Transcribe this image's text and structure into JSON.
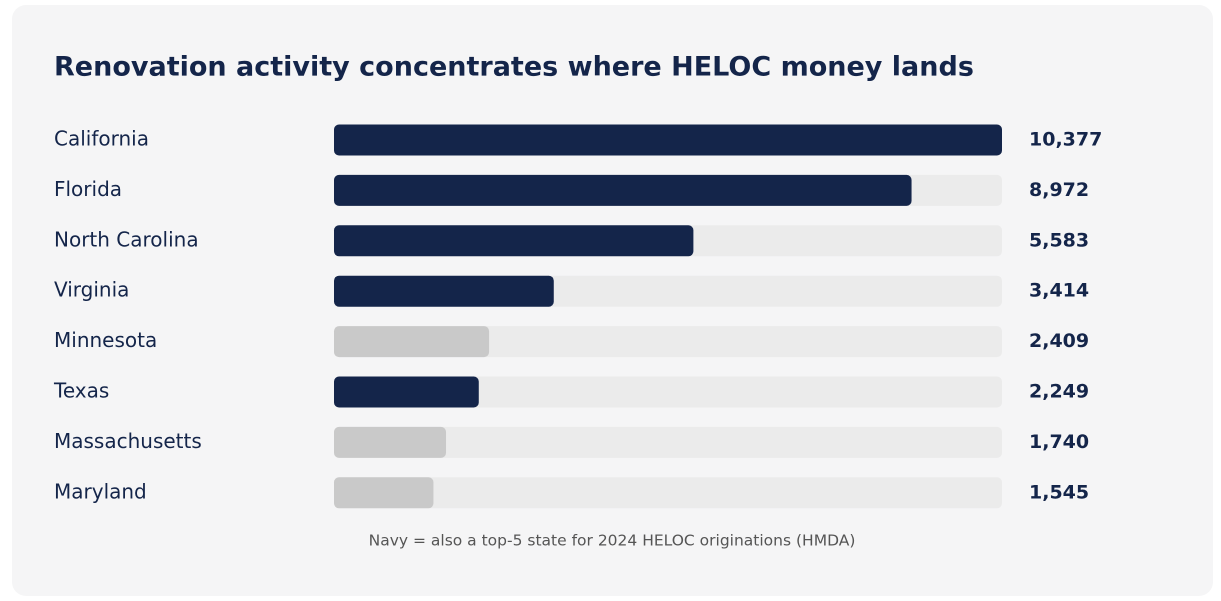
{
  "chart_data": {
    "type": "hbar",
    "title": "Renovation activity concentrates where HELOC money lands",
    "categories": [
      "California",
      "Florida",
      "North Carolina",
      "Virginia",
      "Minnesota",
      "Texas",
      "Massachusetts",
      "Maryland"
    ],
    "values": [
      10377,
      8972,
      5583,
      3414,
      2409,
      2249,
      1740,
      1545
    ],
    "value_labels": [
      "10,377",
      "8,972",
      "5,583",
      "3,414",
      "2,409",
      "2,249",
      "1,740",
      "1,545"
    ],
    "colors": [
      "#14254a",
      "#14254a",
      "#14254a",
      "#14254a",
      "#c9c9c9",
      "#14254a",
      "#c9c9c9",
      "#c9c9c9"
    ],
    "xlim": [
      0,
      10377
    ],
    "note": "Navy = also a top-5 state for 2024 HELOC originations (HMDA)"
  }
}
